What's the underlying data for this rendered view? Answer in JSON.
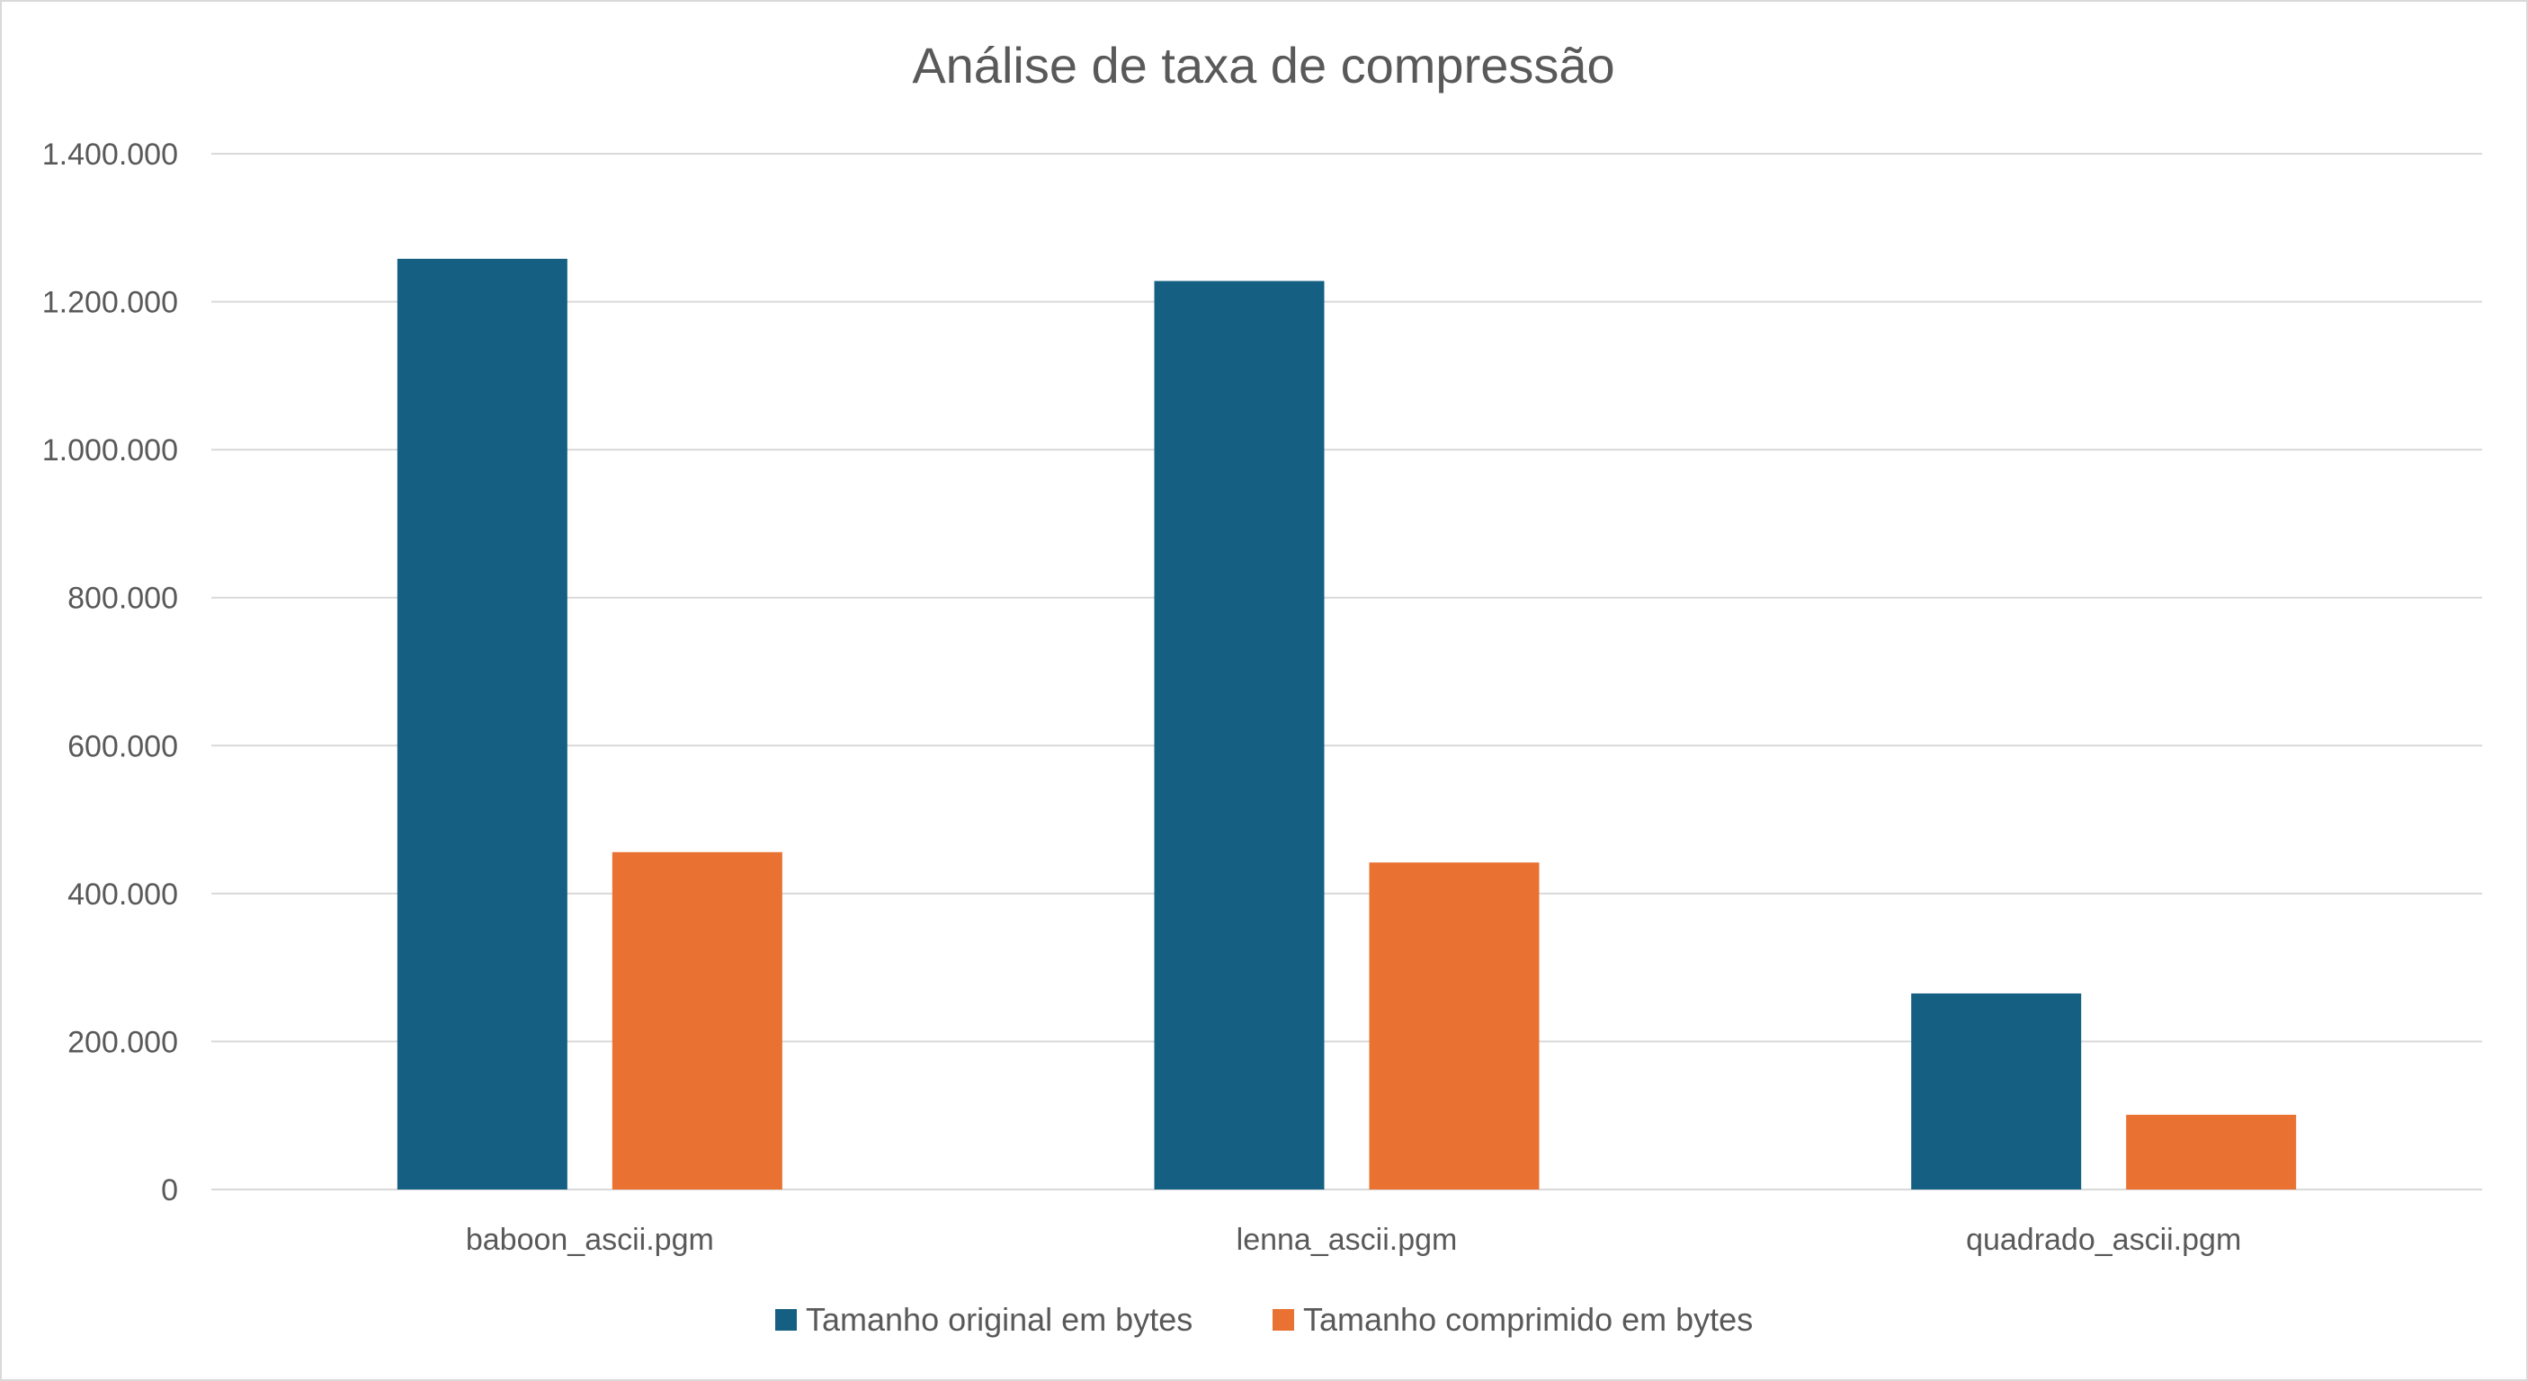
{
  "chart_data": {
    "type": "bar",
    "title": "Análise de taxa de compressão",
    "xlabel": "",
    "ylabel": "",
    "categories": [
      "baboon_ascii.pgm",
      "lenna_ascii.pgm",
      "quadrado_ascii.pgm"
    ],
    "series": [
      {
        "name": "Tamanho original em bytes",
        "color": "#156082",
        "values": [
          1258000,
          1228000,
          265000
        ]
      },
      {
        "name": "Tamanho comprimido em bytes",
        "color": "#E97132",
        "values": [
          456000,
          442000,
          101000
        ]
      }
    ],
    "ylim": [
      0,
      1400000
    ],
    "yticks": [
      0,
      200000,
      400000,
      600000,
      800000,
      1000000,
      1200000,
      1400000
    ],
    "ytick_labels": [
      "0",
      "200.000",
      "400.000",
      "600.000",
      "800.000",
      "1.000.000",
      "1.200.000",
      "1.400.000"
    ],
    "grid": true,
    "legend_position": "bottom"
  }
}
